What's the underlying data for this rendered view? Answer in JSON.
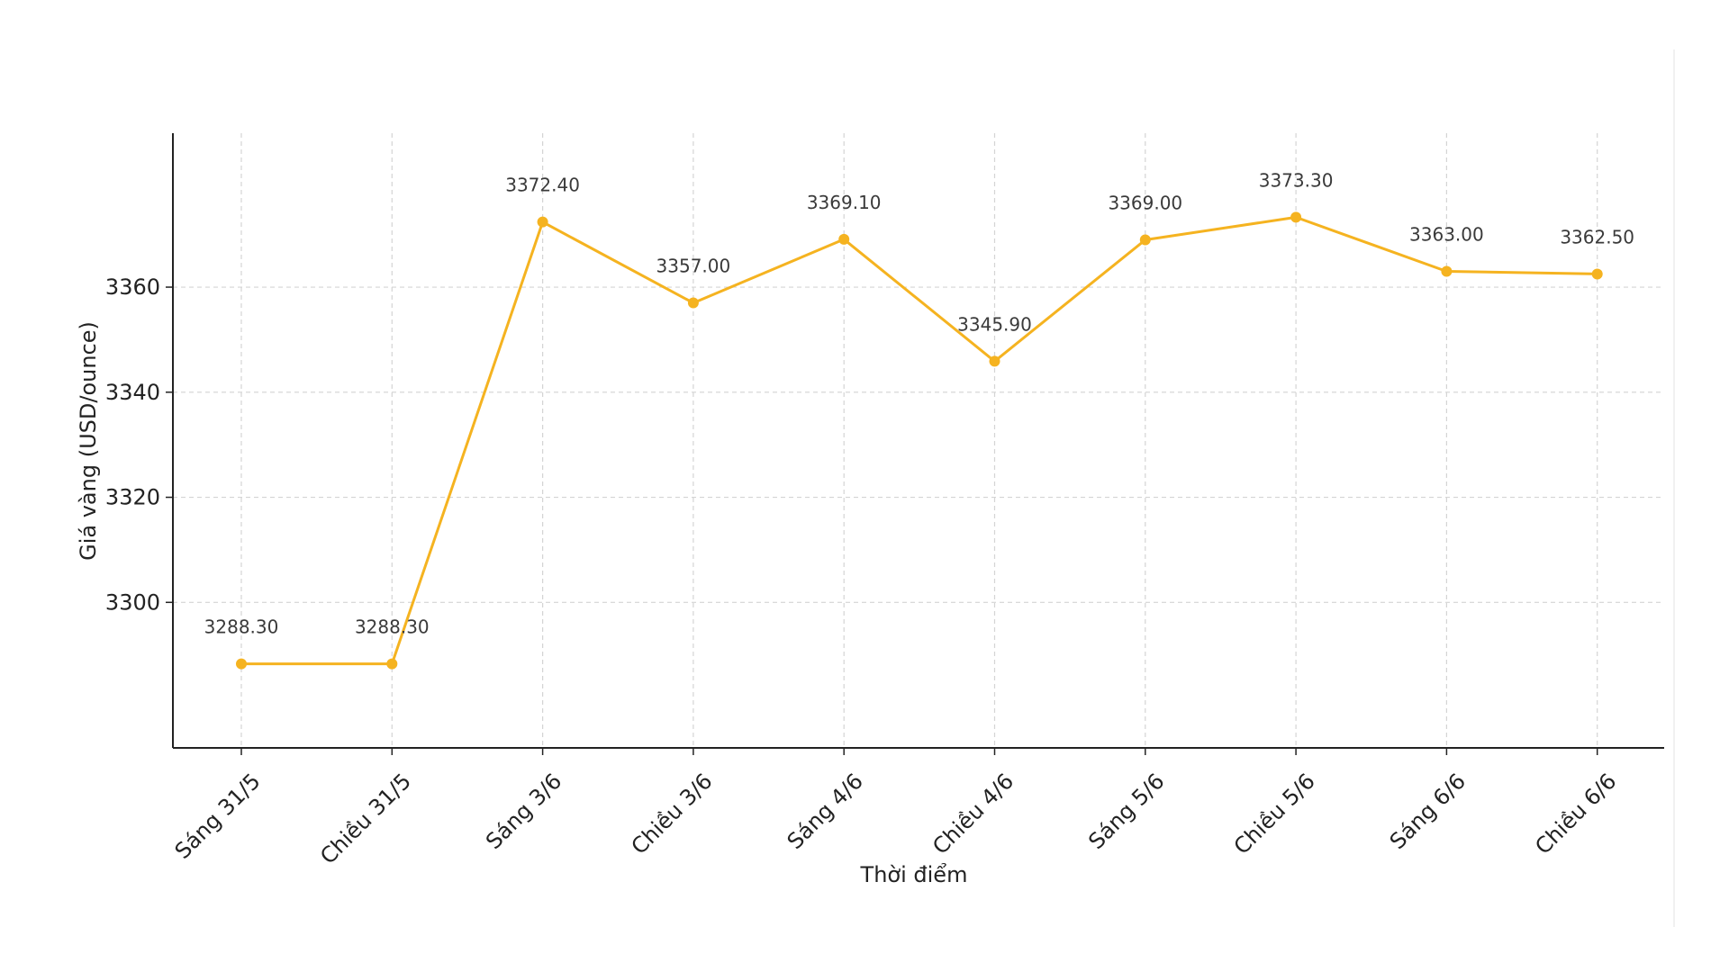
{
  "chart_data": {
    "type": "line",
    "categories": [
      "Sáng 31/5",
      "Chiều 31/5",
      "Sáng 3/6",
      "Chiều 3/6",
      "Sáng 4/6",
      "Chiều 4/6",
      "Sáng 5/6",
      "Chiều 5/6",
      "Sáng 6/6",
      "Chiều 6/6"
    ],
    "values": [
      3288.3,
      3288.3,
      3372.4,
      3357.0,
      3369.1,
      3345.9,
      3369.0,
      3373.3,
      3363.0,
      3362.5
    ],
    "data_labels": [
      "3288.30",
      "3288.30",
      "3372.40",
      "3357.00",
      "3369.10",
      "3345.90",
      "3369.00",
      "3373.30",
      "3363.00",
      "3362.50"
    ],
    "title": "",
    "xlabel": "Thời điểm",
    "ylabel": "Giá vàng (USD/ounce)",
    "ylim": [
      3272.3,
      3389.3
    ],
    "yticks": [
      3300,
      3320,
      3340,
      3360
    ],
    "grid": true,
    "legend": "none",
    "line_color": "#f5b320"
  }
}
